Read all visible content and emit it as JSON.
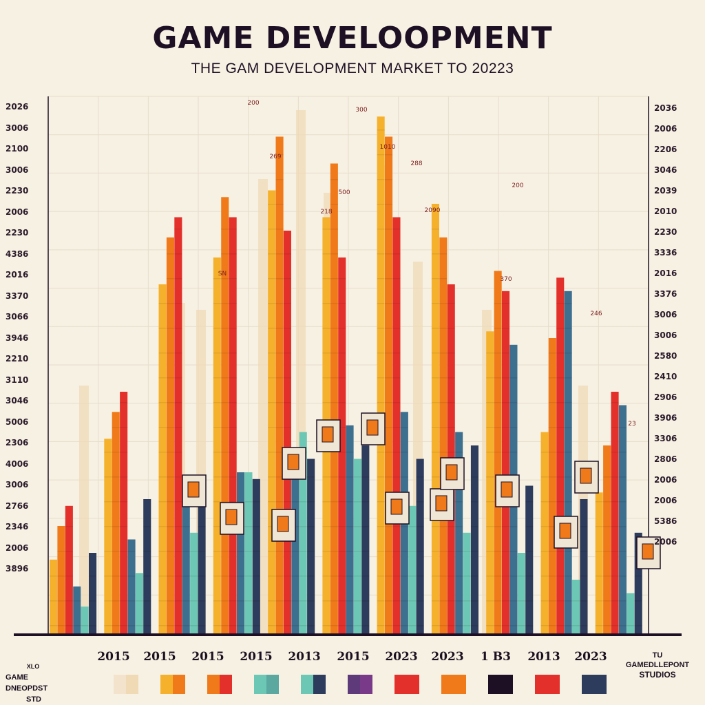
{
  "title": "GAME DEVELOOPMENT",
  "subtitle": "THE GAM DEVELOPMENT MARKET TO 20223",
  "left_axis_labels": [
    "2026",
    "3006",
    "2100",
    "3006",
    "2230",
    "2006",
    "2230",
    "4386",
    "2016",
    "3370",
    "3066",
    "3946",
    "2210",
    "3110",
    "3046",
    "5006",
    "2306",
    "4006",
    "3006",
    "2766",
    "2346",
    "2006",
    "3896"
  ],
  "right_axis_labels": [
    "2036",
    "2006",
    "2206",
    "3046",
    "2039",
    "2010",
    "2230",
    "3336",
    "2016",
    "3376",
    "3006",
    "3006",
    "2580",
    "2410",
    "2906",
    "3906",
    "3306",
    "2806",
    "2006",
    "2006",
    "5386",
    "2006"
  ],
  "x_labels": [
    "2015",
    "2015",
    "2015",
    "2015",
    "2013",
    "2015",
    "2023",
    "2023",
    "1 B3",
    "2013",
    "2023"
  ],
  "corner_left": {
    "top": "XLO",
    "line1": "GAME DNEOPDST",
    "line2": "STD"
  },
  "corner_right": {
    "top": "TU",
    "line1": "GAMEDLLEPONT",
    "line2": "STUDIOS"
  },
  "bar_labels": [
    "200",
    "300",
    "1010",
    "288",
    "200",
    "2090",
    "SN",
    "269",
    "500",
    "218",
    "370",
    "246",
    "23"
  ],
  "colors": {
    "background": "#f7f1e3",
    "cream": "#f0d9b5",
    "yellow": "#f6b12c",
    "orange": "#f07a1a",
    "red": "#e4302b",
    "crimson": "#c41e3a",
    "teal": "#6cc7b4",
    "steel": "#3d6f8f",
    "navy": "#2d3b5c",
    "purple": "#5e3a7a",
    "dark": "#1e1024"
  },
  "legend": [
    {
      "a": "#f3e3cc",
      "b": "#f0d9b5"
    },
    {
      "a": "#f6b12c",
      "b": "#f07a1a"
    },
    {
      "a": "#f07a1a",
      "b": "#e4302b"
    },
    {
      "a": "#6cc7b4",
      "b": "#5aa8a0"
    },
    {
      "a": "#6cc7b4",
      "b": "#2d3b5c"
    },
    {
      "a": "#5e3a7a",
      "b": "#7a3a8a"
    },
    {
      "a": "#e4302b",
      "b": "#e4302b"
    },
    {
      "a": "#f07a1a",
      "b": "#f07a1a"
    },
    {
      "a": "#1e1024",
      "b": "#1e1024"
    },
    {
      "a": "#e4302b",
      "b": "#e4302b"
    },
    {
      "a": "#2d3b5c",
      "b": "#2d3b5c"
    }
  ],
  "chart_data": {
    "type": "bar",
    "title": "GAME DEVELOOPMENT",
    "subtitle": "THE GAM DEVELOPMENT MARKET TO 20223",
    "categories": [
      "2015",
      "2015",
      "2015",
      "2015",
      "2013",
      "2015",
      "2023",
      "2023",
      "1 B3",
      "2013",
      "2023"
    ],
    "series": [
      {
        "values": [
          110,
          290,
          520,
          560,
          660,
          620,
          770,
          640,
          450,
          300,
          210
        ],
        "color_key": "yellow"
      },
      {
        "values": [
          160,
          330,
          590,
          650,
          740,
          700,
          740,
          590,
          540,
          440,
          280
        ],
        "color_key": "orange"
      },
      {
        "values": [
          190,
          360,
          620,
          620,
          600,
          560,
          620,
          520,
          510,
          530,
          360
        ],
        "color_key": "red"
      },
      {
        "values": [
          70,
          140,
          190,
          240,
          260,
          310,
          330,
          300,
          430,
          510,
          340
        ],
        "color_key": "steel"
      },
      {
        "values": [
          40,
          90,
          150,
          240,
          300,
          260,
          190,
          150,
          120,
          80,
          60
        ],
        "color_key": "teal"
      },
      {
        "values": [
          120,
          200,
          210,
          230,
          260,
          280,
          260,
          280,
          220,
          200,
          150
        ],
        "color_key": "navy"
      }
    ],
    "ylim": [
      0,
      800
    ],
    "grid": true,
    "legend_position": "bottom"
  }
}
